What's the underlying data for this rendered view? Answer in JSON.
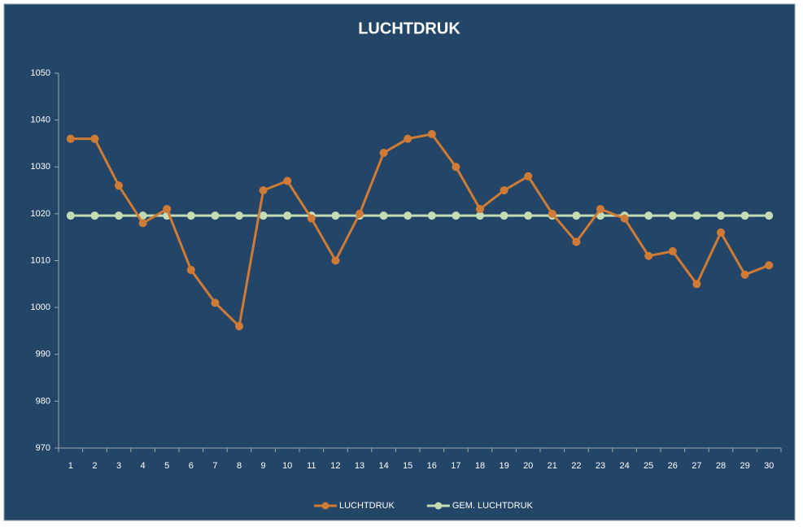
{
  "chart_data": {
    "type": "line",
    "title": "LUCHTDRUK",
    "categories": [
      1,
      2,
      3,
      4,
      5,
      6,
      7,
      8,
      9,
      10,
      11,
      12,
      13,
      14,
      15,
      16,
      17,
      18,
      19,
      20,
      21,
      22,
      23,
      24,
      25,
      26,
      27,
      28,
      29,
      30
    ],
    "series": [
      {
        "name": "LUCHTDRUK",
        "color": "#d07b35",
        "values": [
          1036,
          1036,
          1026,
          1018,
          1021,
          1008,
          1001,
          996,
          1025,
          1027,
          1019,
          1010,
          1020,
          1033,
          1036,
          1037,
          1030,
          1021,
          1025,
          1028,
          1020,
          1014,
          1021,
          1019,
          1011,
          1012,
          1005,
          1016,
          1007,
          1009
        ]
      },
      {
        "name": "GEM. LUCHTDRUK",
        "color": "#c4dcb4",
        "values": [
          1019.6,
          1019.6,
          1019.6,
          1019.6,
          1019.6,
          1019.6,
          1019.6,
          1019.6,
          1019.6,
          1019.6,
          1019.6,
          1019.6,
          1019.6,
          1019.6,
          1019.6,
          1019.6,
          1019.6,
          1019.6,
          1019.6,
          1019.6,
          1019.6,
          1019.6,
          1019.6,
          1019.6,
          1019.6,
          1019.6,
          1019.6,
          1019.6,
          1019.6,
          1019.6
        ]
      }
    ],
    "ylim": [
      970,
      1050
    ],
    "yticks": [
      970,
      980,
      990,
      1000,
      1010,
      1020,
      1030,
      1040,
      1050
    ],
    "legend": "bottom"
  }
}
